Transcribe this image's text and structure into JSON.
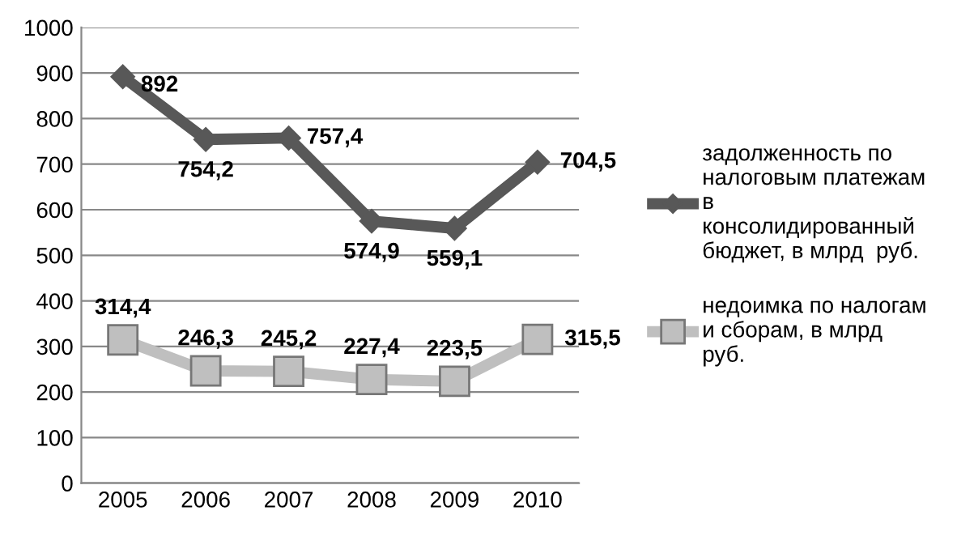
{
  "chart_data": {
    "type": "line",
    "categories": [
      "2005",
      "2006",
      "2007",
      "2008",
      "2009",
      "2010"
    ],
    "series": [
      {
        "name": "задолженность по\nналоговым платежам\nв\nконсолидированный\nбюджет, в млрд  руб.",
        "color": "#585858",
        "marker": "diamond",
        "values": [
          892,
          754.2,
          757.4,
          574.9,
          559.1,
          704.5
        ],
        "value_labels": [
          "892",
          "754,2",
          "757,4",
          "574,9",
          "559,1",
          "704,5"
        ]
      },
      {
        "name": "недоимка по налогам\nи сборам, в млрд\nруб.",
        "color": "#bfbfbf",
        "marker": "square",
        "values": [
          314.4,
          246.3,
          245.2,
          227.4,
          223.5,
          315.5
        ],
        "value_labels": [
          "314,4",
          "246,3",
          "245,2",
          "227,4",
          "223,5",
          "315,5"
        ]
      }
    ],
    "ylim": [
      0,
      1000
    ],
    "yticks": [
      0,
      100,
      200,
      300,
      400,
      500,
      600,
      700,
      800,
      900,
      1000
    ],
    "grid": "y",
    "legend": "right"
  }
}
